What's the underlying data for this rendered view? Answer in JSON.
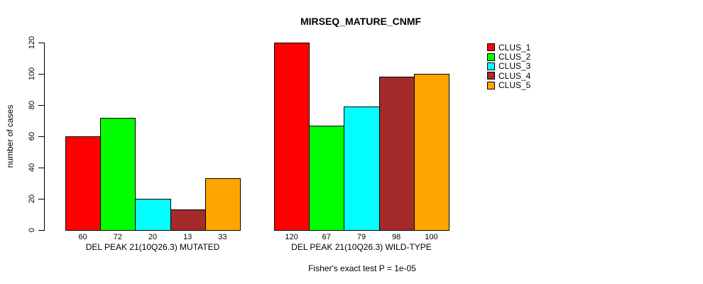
{
  "title": "MIRSEQ_MATURE_CNMF",
  "chart_data": {
    "type": "bar",
    "title": "MIRSEQ_MATURE_CNMF",
    "ylabel": "number of cases",
    "xlabel": "",
    "ylim": [
      0,
      120
    ],
    "yticks": [
      0,
      20,
      40,
      60,
      80,
      100,
      120
    ],
    "grid": false,
    "legend_position": "right-inside",
    "bar_value_labels": true,
    "categories": [
      "DEL PEAK 21(10Q26.3) MUTATED",
      "DEL PEAK 21(10Q26.3) WILD-TYPE"
    ],
    "series": [
      {
        "name": "CLUS_1",
        "color": "#FF0000",
        "values": [
          60,
          120
        ]
      },
      {
        "name": "CLUS_2",
        "color": "#00FF00",
        "values": [
          72,
          67
        ]
      },
      {
        "name": "CLUS_3",
        "color": "#00FFFF",
        "values": [
          20,
          79
        ]
      },
      {
        "name": "CLUS_4",
        "color": "#A52A2A",
        "values": [
          13,
          98
        ]
      },
      {
        "name": "CLUS_5",
        "color": "#FFA500",
        "values": [
          33,
          100
        ]
      }
    ],
    "groups": [
      {
        "label": "DEL PEAK 21(10Q26.3) MUTATED",
        "values": [
          60,
          72,
          20,
          13,
          33
        ]
      },
      {
        "label": "DEL PEAK 21(10Q26.3) WILD-TYPE",
        "values": [
          120,
          67,
          79,
          98,
          100
        ]
      }
    ],
    "annotation": "Fisher's exact test P = 1e-05"
  },
  "colors": {
    "background": "#FFFFFF",
    "axis": "#000000",
    "bar_border": "#000000",
    "text": "#000000"
  }
}
